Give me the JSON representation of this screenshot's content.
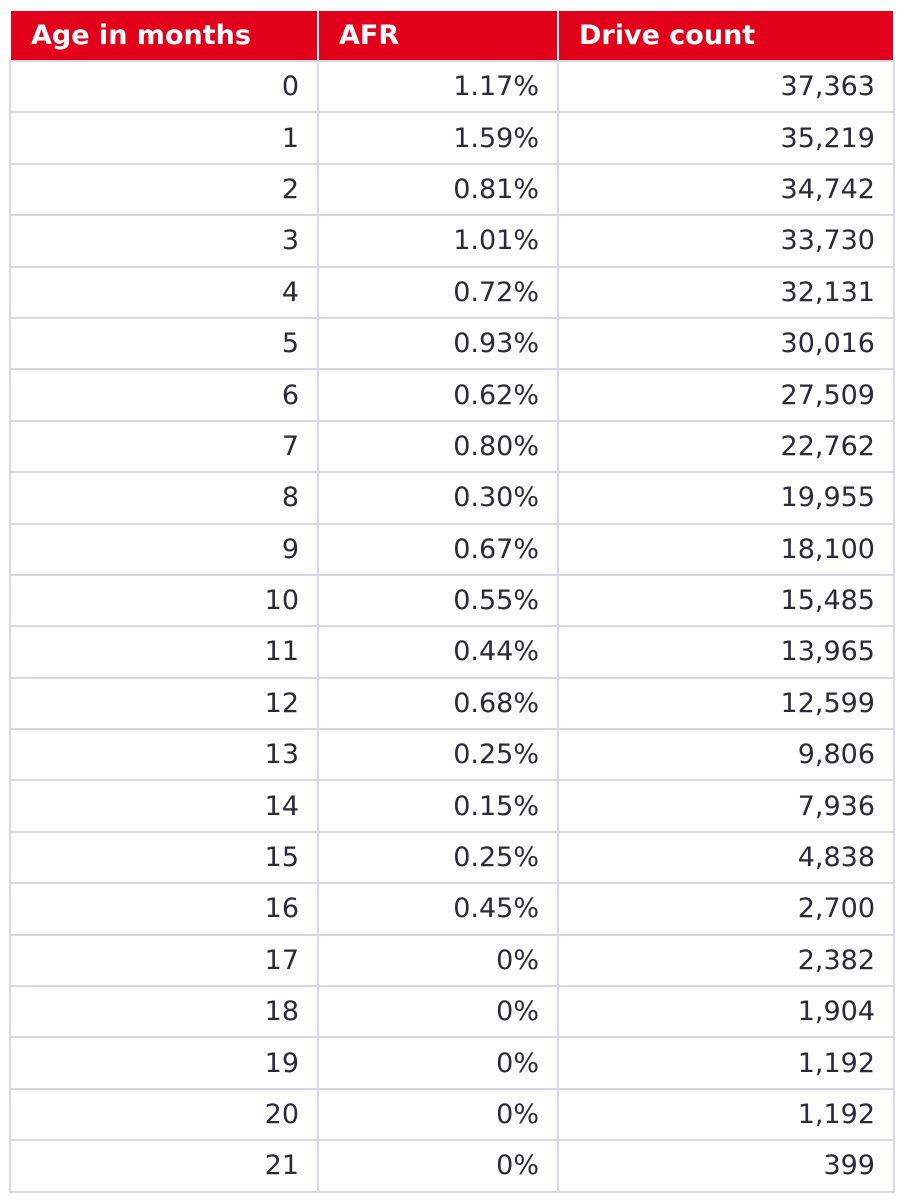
{
  "table": {
    "columns": [
      "Age in months",
      "AFR",
      "Drive count"
    ],
    "rows": [
      [
        "0",
        "1.17%",
        "37,363"
      ],
      [
        "1",
        "1.59%",
        "35,219"
      ],
      [
        "2",
        "0.81%",
        "34,742"
      ],
      [
        "3",
        "1.01%",
        "33,730"
      ],
      [
        "4",
        "0.72%",
        "32,131"
      ],
      [
        "5",
        "0.93%",
        "30,016"
      ],
      [
        "6",
        "0.62%",
        "27,509"
      ],
      [
        "7",
        "0.80%",
        "22,762"
      ],
      [
        "8",
        "0.30%",
        "19,955"
      ],
      [
        "9",
        "0.67%",
        "18,100"
      ],
      [
        "10",
        "0.55%",
        "15,485"
      ],
      [
        "11",
        "0.44%",
        "13,965"
      ],
      [
        "12",
        "0.68%",
        "12,599"
      ],
      [
        "13",
        "0.25%",
        "9,806"
      ],
      [
        "14",
        "0.15%",
        "7,936"
      ],
      [
        "15",
        "0.25%",
        "4,838"
      ],
      [
        "16",
        "0.45%",
        "2,700"
      ],
      [
        "17",
        "0%",
        "2,382"
      ],
      [
        "18",
        "0%",
        "1,904"
      ],
      [
        "19",
        "0%",
        "1,192"
      ],
      [
        "20",
        "0%",
        "1,192"
      ],
      [
        "21",
        "0%",
        "399"
      ]
    ]
  },
  "colors": {
    "header_background": "#e3001b",
    "header_text": "#ffffff",
    "cell_border": "#d8d8ec",
    "cell_text": "#2a2a3a"
  }
}
